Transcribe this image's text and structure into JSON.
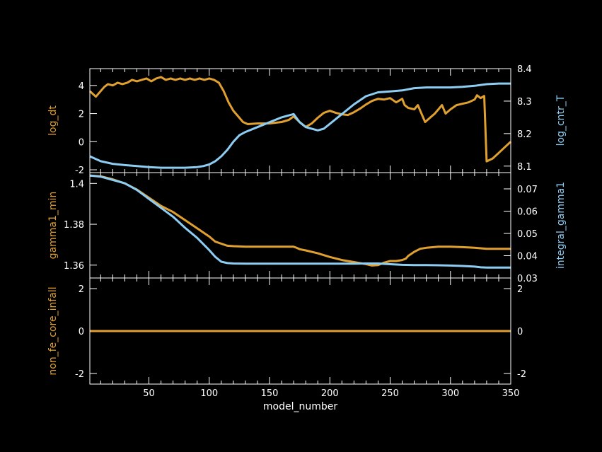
{
  "colors": {
    "background": "#000000",
    "axes": "#ffffff",
    "orange": "#e0a030",
    "blue": "#8ecdf3"
  },
  "chart_data": [
    {
      "type": "line",
      "panel": "top",
      "xlim": [
        1,
        350
      ],
      "ylabel_left": "log_dt",
      "ylabel_right": "log_cntr_T",
      "ylim_left": [
        -2.2,
        5.2
      ],
      "ylim_right": [
        8.08,
        8.4
      ],
      "yticks_left": [
        -2,
        0,
        2,
        4
      ],
      "yticks_right": [
        8.1,
        8.2,
        8.3,
        8.4
      ],
      "series": [
        {
          "axis": "left",
          "color": "#e0a030",
          "x": [
            1,
            6,
            10,
            13,
            16,
            20,
            24,
            28,
            32,
            36,
            40,
            44,
            48,
            52,
            56,
            60,
            64,
            68,
            72,
            76,
            80,
            84,
            88,
            92,
            96,
            100,
            104,
            108,
            112,
            116,
            120,
            124,
            128,
            132,
            140,
            150,
            160,
            166,
            170,
            175,
            180,
            185,
            190,
            195,
            200,
            205,
            210,
            215,
            220,
            225,
            230,
            235,
            240,
            245,
            250,
            255,
            260,
            262,
            265,
            270,
            273,
            276,
            279,
            283,
            287,
            290,
            293,
            296,
            300,
            305,
            310,
            315,
            320,
            322,
            325,
            328,
            330,
            335,
            340,
            345,
            350
          ],
          "values": [
            3.6,
            3.2,
            3.6,
            3.9,
            4.1,
            4.0,
            4.2,
            4.1,
            4.2,
            4.4,
            4.3,
            4.4,
            4.5,
            4.3,
            4.5,
            4.6,
            4.4,
            4.5,
            4.4,
            4.5,
            4.4,
            4.5,
            4.4,
            4.5,
            4.4,
            4.5,
            4.4,
            4.2,
            3.6,
            2.8,
            2.2,
            1.8,
            1.4,
            1.25,
            1.3,
            1.3,
            1.4,
            1.55,
            1.8,
            1.4,
            1.05,
            1.3,
            1.7,
            2.05,
            2.2,
            2.05,
            1.95,
            1.9,
            2.1,
            2.35,
            2.65,
            2.9,
            3.05,
            3.0,
            3.1,
            2.8,
            3.05,
            2.6,
            2.4,
            2.3,
            2.6,
            2.0,
            1.4,
            1.7,
            2.0,
            2.3,
            2.6,
            2.0,
            2.3,
            2.6,
            2.7,
            2.8,
            3.0,
            3.3,
            3.1,
            3.25,
            -1.4,
            -1.2,
            -0.8,
            -0.4,
            0.0
          ]
        },
        {
          "axis": "right",
          "color": "#8ecdf3",
          "x": [
            1,
            10,
            20,
            30,
            40,
            50,
            60,
            70,
            80,
            90,
            95,
            100,
            105,
            110,
            115,
            120,
            125,
            130,
            140,
            150,
            160,
            165,
            170,
            175,
            180,
            190,
            195,
            200,
            210,
            220,
            230,
            240,
            250,
            260,
            270,
            280,
            290,
            300,
            310,
            320,
            330,
            340,
            350
          ],
          "values": [
            8.13,
            8.115,
            8.107,
            8.103,
            8.1,
            8.097,
            8.095,
            8.095,
            8.095,
            8.097,
            8.1,
            8.105,
            8.115,
            8.13,
            8.15,
            8.175,
            8.195,
            8.205,
            8.22,
            8.235,
            8.25,
            8.255,
            8.26,
            8.235,
            8.22,
            8.21,
            8.215,
            8.23,
            8.26,
            8.29,
            8.315,
            8.327,
            8.33,
            8.333,
            8.34,
            8.342,
            8.342,
            8.342,
            8.344,
            8.347,
            8.352,
            8.354,
            8.354
          ]
        }
      ]
    },
    {
      "type": "line",
      "panel": "middle",
      "xlim": [
        1,
        350
      ],
      "ylabel_left": "gamma1_min",
      "ylabel_right": "integral_gamma1",
      "ylim_left": [
        1.3537,
        1.4053
      ],
      "ylim_right": [
        0.03,
        0.0773
      ],
      "yticks_left": [
        1.36,
        1.38,
        1.4
      ],
      "ytick_labels_left": [
        "1.36",
        "1.38",
        "1.4"
      ],
      "yticks_right": [
        0.03,
        0.04,
        0.05,
        0.06,
        0.07
      ],
      "series": [
        {
          "axis": "left",
          "color": "#e0a030",
          "x": [
            1,
            10,
            20,
            30,
            40,
            50,
            60,
            70,
            80,
            90,
            100,
            105,
            110,
            115,
            120,
            130,
            140,
            150,
            160,
            170,
            172,
            175,
            180,
            190,
            200,
            210,
            220,
            230,
            235,
            240,
            245,
            250,
            255,
            260,
            263,
            265,
            270,
            275,
            280,
            290,
            300,
            310,
            320,
            330,
            340,
            350
          ],
          "values": [
            1.4038,
            1.4035,
            1.402,
            1.4,
            1.397,
            1.393,
            1.389,
            1.386,
            1.382,
            1.378,
            1.374,
            1.3715,
            1.3705,
            1.3695,
            1.3693,
            1.369,
            1.369,
            1.369,
            1.369,
            1.369,
            1.3686,
            1.3678,
            1.3672,
            1.3658,
            1.364,
            1.3625,
            1.3615,
            1.3605,
            1.3598,
            1.36,
            1.3612,
            1.362,
            1.362,
            1.3625,
            1.3632,
            1.3645,
            1.3665,
            1.368,
            1.3685,
            1.369,
            1.369,
            1.3688,
            1.3685,
            1.368,
            1.368,
            1.368
          ]
        },
        {
          "axis": "right",
          "color": "#8ecdf3",
          "x": [
            1,
            10,
            20,
            30,
            40,
            50,
            60,
            70,
            80,
            90,
            100,
            105,
            110,
            115,
            120,
            130,
            140,
            150,
            160,
            170,
            180,
            190,
            200,
            210,
            220,
            230,
            240,
            250,
            260,
            270,
            280,
            290,
            300,
            310,
            320,
            325,
            330,
            340,
            350
          ],
          "values": [
            0.076,
            0.0755,
            0.074,
            0.0725,
            0.0695,
            0.0655,
            0.0615,
            0.0575,
            0.0525,
            0.048,
            0.0425,
            0.0395,
            0.0373,
            0.0367,
            0.0365,
            0.0364,
            0.0364,
            0.0364,
            0.0364,
            0.0364,
            0.0364,
            0.0364,
            0.0364,
            0.0364,
            0.0364,
            0.0365,
            0.0365,
            0.0362,
            0.0359,
            0.0358,
            0.0358,
            0.0357,
            0.0356,
            0.0354,
            0.0351,
            0.0348,
            0.0347,
            0.0347,
            0.0347
          ]
        }
      ]
    },
    {
      "type": "line",
      "panel": "bottom",
      "xlim": [
        1,
        350
      ],
      "xlabel": "model_number",
      "ylabel_left": "non_fe_core_infall",
      "ylim_left": [
        -2.5,
        2.5
      ],
      "ylim_right": [
        -2.5,
        2.5
      ],
      "yticks_left": [
        -2,
        0,
        2
      ],
      "yticks_right": [
        -2,
        0,
        2
      ],
      "xticks": [
        50,
        100,
        150,
        200,
        250,
        300,
        350
      ],
      "series": [
        {
          "axis": "left",
          "color": "#e0a030",
          "x": [
            1,
            350
          ],
          "values": [
            0,
            0
          ]
        }
      ]
    }
  ]
}
